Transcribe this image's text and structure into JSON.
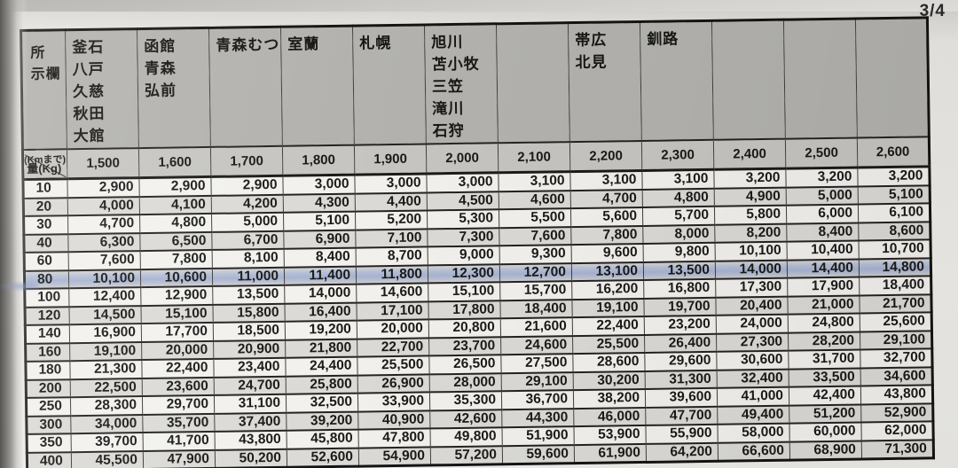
{
  "page": {
    "number": "3/4"
  },
  "table": {
    "corner": {
      "place_label_lines": [
        "所",
        "示欄"
      ],
      "distance_unit_label": "(Kmまで)",
      "weight_unit_label": "量(Kg)"
    },
    "city_columns": [
      {
        "lines": [
          "釜石",
          "八戸",
          "久慈",
          "秋田",
          "大館"
        ]
      },
      {
        "lines": [
          "函館",
          "青森",
          "弘前"
        ]
      },
      {
        "lines": [
          "青森むつ"
        ]
      },
      {
        "lines": [
          "室蘭"
        ]
      },
      {
        "lines": [
          "札幌"
        ]
      },
      {
        "lines": [
          "旭川",
          "苫小牧",
          "三笠",
          "滝川",
          "石狩"
        ]
      },
      {
        "lines": []
      },
      {
        "lines": [
          "帯広",
          "北見"
        ]
      },
      {
        "lines": [
          "釧路"
        ]
      },
      {
        "lines": []
      },
      {
        "lines": []
      },
      {
        "lines": []
      }
    ],
    "distances": [
      "1,500",
      "1,600",
      "1,700",
      "1,800",
      "1,900",
      "2,000",
      "2,100",
      "2,200",
      "2,300",
      "2,400",
      "2,500",
      "2,600"
    ],
    "rows": [
      {
        "weight": "10",
        "values": [
          "2,900",
          "2,900",
          "2,900",
          "3,000",
          "3,000",
          "3,000",
          "3,100",
          "3,100",
          "3,100",
          "3,200",
          "3,200",
          "3,200"
        ]
      },
      {
        "weight": "20",
        "values": [
          "4,000",
          "4,100",
          "4,200",
          "4,300",
          "4,400",
          "4,500",
          "4,600",
          "4,700",
          "4,800",
          "4,900",
          "5,000",
          "5,100"
        ]
      },
      {
        "weight": "30",
        "values": [
          "4,700",
          "4,800",
          "5,000",
          "5,100",
          "5,200",
          "5,300",
          "5,500",
          "5,600",
          "5,700",
          "5,800",
          "6,000",
          "6,100"
        ]
      },
      {
        "weight": "40",
        "values": [
          "6,300",
          "6,500",
          "6,700",
          "6,900",
          "7,100",
          "7,300",
          "7,600",
          "7,800",
          "8,000",
          "8,200",
          "8,400",
          "8,600"
        ]
      },
      {
        "weight": "60",
        "values": [
          "7,600",
          "7,800",
          "8,100",
          "8,400",
          "8,700",
          "9,000",
          "9,300",
          "9,600",
          "9,800",
          "10,100",
          "10,400",
          "10,700"
        ]
      },
      {
        "weight": "80",
        "values": [
          "10,100",
          "10,600",
          "11,000",
          "11,400",
          "11,800",
          "12,300",
          "12,700",
          "13,100",
          "13,500",
          "14,000",
          "14,400",
          "14,800"
        ]
      },
      {
        "weight": "100",
        "values": [
          "12,400",
          "12,900",
          "13,500",
          "14,000",
          "14,600",
          "15,100",
          "15,700",
          "16,200",
          "16,800",
          "17,300",
          "17,900",
          "18,400"
        ]
      },
      {
        "weight": "120",
        "values": [
          "14,500",
          "15,100",
          "15,800",
          "16,400",
          "17,100",
          "17,800",
          "18,400",
          "19,100",
          "19,700",
          "20,400",
          "21,000",
          "21,700"
        ]
      },
      {
        "weight": "140",
        "values": [
          "16,900",
          "17,700",
          "18,500",
          "19,200",
          "20,000",
          "20,800",
          "21,600",
          "22,400",
          "23,200",
          "24,000",
          "24,800",
          "25,600"
        ]
      },
      {
        "weight": "160",
        "values": [
          "19,100",
          "20,000",
          "20,900",
          "21,800",
          "22,700",
          "23,700",
          "24,600",
          "25,500",
          "26,400",
          "27,300",
          "28,200",
          "29,100"
        ]
      },
      {
        "weight": "180",
        "values": [
          "21,300",
          "22,400",
          "23,400",
          "24,400",
          "25,500",
          "26,500",
          "27,500",
          "28,600",
          "29,600",
          "30,600",
          "31,700",
          "32,700"
        ]
      },
      {
        "weight": "200",
        "values": [
          "22,500",
          "23,600",
          "24,700",
          "25,800",
          "26,900",
          "28,000",
          "29,100",
          "30,200",
          "31,300",
          "32,400",
          "33,500",
          "34,600"
        ]
      },
      {
        "weight": "250",
        "values": [
          "28,300",
          "29,700",
          "31,100",
          "32,500",
          "33,900",
          "35,300",
          "36,700",
          "38,200",
          "39,600",
          "41,000",
          "42,400",
          "43,800"
        ]
      },
      {
        "weight": "300",
        "values": [
          "34,000",
          "35,700",
          "37,400",
          "39,200",
          "40,900",
          "42,600",
          "44,300",
          "46,000",
          "47,700",
          "49,400",
          "51,200",
          "52,900"
        ]
      },
      {
        "weight": "350",
        "values": [
          "39,700",
          "41,700",
          "43,800",
          "45,800",
          "47,800",
          "49,800",
          "51,900",
          "53,900",
          "55,900",
          "58,000",
          "60,000",
          "62,000"
        ]
      },
      {
        "weight": "400",
        "values": [
          "45,500",
          "47,900",
          "50,200",
          "52,600",
          "54,900",
          "57,200",
          "59,600",
          "61,900",
          "64,200",
          "66,600",
          "68,900",
          "71,300"
        ]
      }
    ],
    "highlight_weight": "80",
    "colors": {
      "highlight_blue": "#a7b3d0",
      "header_gray": "#b3b2ae",
      "distance_row_gray": "#c6c5c1",
      "row_shaded": "#dbdad6",
      "row_light": "#f2f1ed"
    }
  }
}
